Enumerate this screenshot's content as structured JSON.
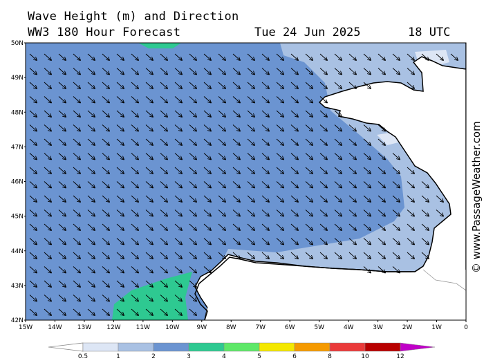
{
  "header": {
    "title": "Wave Height (m) and Direction",
    "model": "WW3 180 Hour Forecast",
    "date": "Tue 24 Jun 2025",
    "time": "18 UTC"
  },
  "map": {
    "lat_labels": [
      "50N",
      "49N",
      "48N",
      "47N",
      "46N",
      "45N",
      "44N",
      "43N",
      "42N"
    ],
    "lon_labels": [
      "15W",
      "14W",
      "13W",
      "12W",
      "11W",
      "10W",
      "9W",
      "8W",
      "7W",
      "6W",
      "5W",
      "4W",
      "3W",
      "2W",
      "1W",
      "0"
    ],
    "lat_range": [
      42,
      50
    ],
    "lon_range": [
      -15,
      0
    ],
    "arrow_direction": "towards south-east",
    "credit": "© www.PassageWeather.com"
  },
  "legend": {
    "ticks": [
      "0.5",
      "1",
      "2",
      "3",
      "4",
      "5",
      "6",
      "8",
      "10",
      "12"
    ],
    "colors": [
      "#ffffff",
      "#dde6f5",
      "#a9c1e3",
      "#6b94d1",
      "#2ec991",
      "#5ee868",
      "#f4e800",
      "#f59a00",
      "#ea3a3a",
      "#b80000",
      "#c000c8"
    ]
  }
}
